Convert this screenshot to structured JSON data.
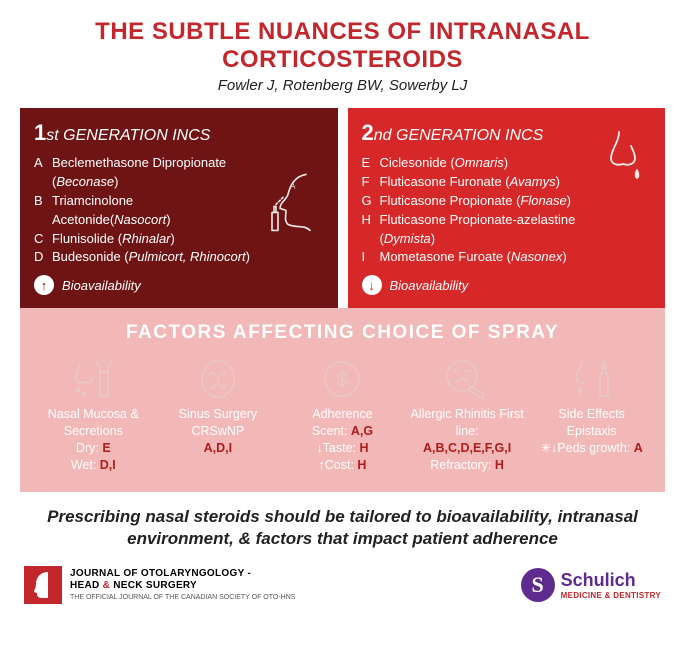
{
  "colors": {
    "title": "#c1272d",
    "authors": "#222222",
    "gen1_bg": "#6e1414",
    "gen2_bg": "#d62828",
    "factors_bg": "#f2b7b7",
    "factors_title": "#ffffff",
    "factor_label": "#ffffff",
    "factor_ref": "#b01c1c",
    "icon_stroke": "#e8c7c7",
    "conclusion": "#222222",
    "jlogo_bg": "#c1272d",
    "jtext": "#222222",
    "jamp": "#c1272d",
    "schulich_purple": "#5e2b8f",
    "schulich_sub": "#c1272d",
    "gen1_circ_text": "#6e1414",
    "gen2_circ_text": "#d62828"
  },
  "title": "THE SUBTLE NUANCES OF INTRANASAL CORTICOSTEROIDS",
  "title_fontsize": 24,
  "authors": "Fowler J, Rotenberg BW, Sowerby LJ",
  "authors_fontsize": 15,
  "gen1": {
    "num": "1",
    "suffix": "st GENERATION INCS",
    "items": [
      {
        "letter": "A",
        "text": "Beclemethasone Diprop­ionate (<em>Beconase</em>)"
      },
      {
        "letter": "B",
        "text": "Triamcinolone Acetonide(<em>Nasocort</em>)"
      },
      {
        "letter": "C",
        "text": "Flunisolide (<em>Rhinalar</em>)"
      },
      {
        "letter": "D",
        "text": "Budesonide (<em>Pulmicort, Rhinocort</em>)"
      }
    ],
    "bio_arrow": "↑",
    "bio_label": "Bioavailability"
  },
  "gen2": {
    "num": "2",
    "suffix": "nd GENERATION INCS",
    "items": [
      {
        "letter": "E",
        "text": "Ciclesonide (<em>Omnaris</em>)"
      },
      {
        "letter": "F",
        "text": "Fluticasone Furonate (<em>Avamys</em>)"
      },
      {
        "letter": "G",
        "text": "Fluticasone Propionate (<em>Flonase</em>)"
      },
      {
        "letter": "H",
        "text": "Fluticasone Propionate-azelastine (<em>Dymista</em>)"
      },
      {
        "letter": "I",
        "text": "Mometasone Furoate (<em>Nasonex</em>)"
      }
    ],
    "bio_arrow": "↓",
    "bio_label": "Bioavailability"
  },
  "factors": {
    "title": "FACTORS AFFECTING CHOICE OF SPRAY",
    "title_fontsize": 19,
    "items": [
      {
        "name": "Nasal Mucosa & Secretions",
        "lines": [
          {
            "label": "Dry:",
            "ref": "E"
          },
          {
            "label": "Wet:",
            "ref": "D,I"
          }
        ]
      },
      {
        "name": "Sinus Surgery CRSwNP",
        "lines": [
          {
            "label": "",
            "ref": "A,D,I"
          }
        ]
      },
      {
        "name": "Adherence",
        "lines": [
          {
            "label": "Scent:",
            "ref": "A,G"
          },
          {
            "label": "↓Taste:",
            "ref": "H"
          },
          {
            "label": "↑Cost:",
            "ref": "H"
          }
        ]
      },
      {
        "name": "Allergic Rhinitis First line:",
        "lines": [
          {
            "label": "",
            "ref": "A,B,C,D,E,F,G,I"
          },
          {
            "label": "Refractory:",
            "ref": "H"
          }
        ]
      },
      {
        "name": "Side Effects",
        "lines": [
          {
            "label": "Epistaxis",
            "ref": ""
          },
          {
            "label": "✳↓Peds growth:",
            "ref": "A"
          }
        ]
      }
    ]
  },
  "conclusion": "Prescribing nasal steroids should be tailored to bioavailability, intranasal environment, & factors that impact patient adherence",
  "conclusion_fontsize": 17,
  "footer": {
    "journal_line1": "JOURNAL OF OTOLARYNGOLOGY -",
    "journal_line2a": "HEAD ",
    "journal_amp": "&",
    "journal_line2b": " NECK SURGERY",
    "journal_sub": "THE OFFICIAL JOURNAL OF THE CANADIAN SOCIETY OF OTO-HNS",
    "schulich_name": "Schulich",
    "schulich_sub": "MEDICINE & DENTISTRY"
  }
}
